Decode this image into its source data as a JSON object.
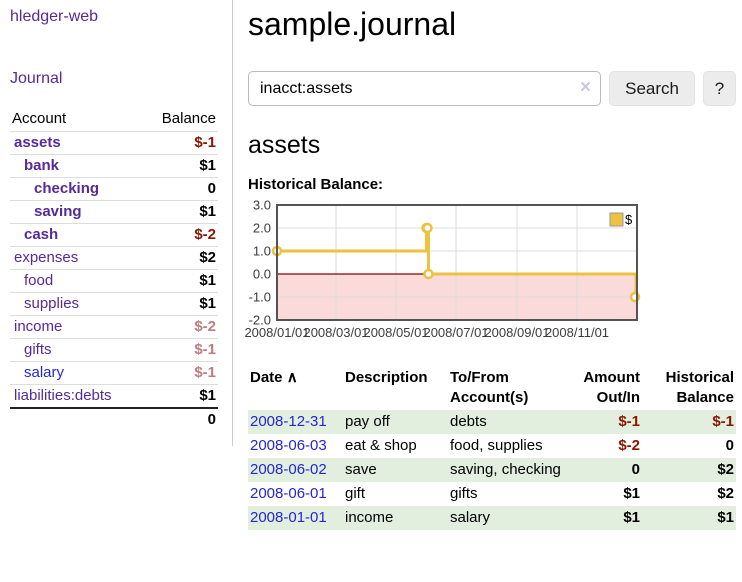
{
  "colors": {
    "purple": "#552a9b",
    "linkblue": "#2525d6",
    "negstrong": "#8b1500",
    "negsoft": "#c07c81",
    "rowgreen": "#e2efde",
    "gold": "#EDC240"
  },
  "app": {
    "brand": "hledger-web"
  },
  "sidebar": {
    "journal_link": "Journal",
    "accounts": {
      "header_account": "Account",
      "header_balance": "Balance",
      "rows": [
        {
          "name": "assets",
          "depth": 0,
          "bold": true,
          "blue": false,
          "balance": "$-1",
          "tone": "strong"
        },
        {
          "name": "bank",
          "depth": 1,
          "bold": true,
          "blue": false,
          "balance": "$1",
          "tone": ""
        },
        {
          "name": "checking",
          "depth": 2,
          "bold": true,
          "blue": false,
          "balance": "0",
          "tone": ""
        },
        {
          "name": "saving",
          "depth": 2,
          "bold": true,
          "blue": false,
          "balance": "$1",
          "tone": ""
        },
        {
          "name": "cash",
          "depth": 1,
          "bold": true,
          "blue": false,
          "balance": "$-2",
          "tone": "strong"
        },
        {
          "name": "expenses",
          "depth": 0,
          "bold": false,
          "blue": false,
          "balance": "$2",
          "tone": ""
        },
        {
          "name": "food",
          "depth": 1,
          "bold": false,
          "blue": false,
          "balance": "$1",
          "tone": ""
        },
        {
          "name": "supplies",
          "depth": 1,
          "bold": false,
          "blue": false,
          "balance": "$1",
          "tone": ""
        },
        {
          "name": "income",
          "depth": 0,
          "bold": false,
          "blue": false,
          "balance": "$-2",
          "tone": "soft"
        },
        {
          "name": "gifts",
          "depth": 1,
          "bold": false,
          "blue": false,
          "balance": "$-1",
          "tone": "soft"
        },
        {
          "name": "salary",
          "depth": 1,
          "bold": false,
          "blue": true,
          "balance": "$-1",
          "tone": "soft"
        },
        {
          "name": "liabilities:debts",
          "depth": 0,
          "bold": false,
          "blue": false,
          "balance": "$1",
          "tone": ""
        }
      ],
      "total": "0"
    }
  },
  "main": {
    "title": "sample.journal",
    "search": {
      "value": "inacct:assets",
      "clear_icon": "×",
      "button_label": "Search",
      "help_label": "?"
    },
    "section_title": "assets",
    "chart_heading": "Historical Balance:",
    "chart_data": {
      "type": "line",
      "title": "Historical Balance",
      "step": true,
      "series": [
        {
          "name": "$",
          "color": "#EDC240",
          "points": [
            [
              "2008-01-01",
              1
            ],
            [
              "2008-06-01",
              2
            ],
            [
              "2008-06-02",
              2
            ],
            [
              "2008-06-03",
              0
            ],
            [
              "2008-12-31",
              -1
            ]
          ]
        }
      ],
      "x_range": [
        "2008-01-01",
        "2009-01-01"
      ],
      "y_range": [
        -2,
        3
      ],
      "y_ticks": [
        3.0,
        2.0,
        1.0,
        0.0,
        -1.0,
        -2.0
      ],
      "x_ticks": [
        "2008/01/01",
        "2008/03/01",
        "2008/05/01",
        "2008/07/01",
        "2008/09/01",
        "2008/11/01"
      ],
      "legend": {
        "label": "$",
        "position": "top-right"
      },
      "grid": true,
      "negative_region_color": "#fbdada",
      "zero_line_color": "#8b0000",
      "grid_color": "#dcdcdc",
      "border_color": "#545454",
      "tick_label_color": "#3c3c3c"
    },
    "transactions": {
      "headers": [
        "Date",
        "Description",
        "To/From Account(s)",
        "Amount Out/In",
        "Historical Balance"
      ],
      "sort_icon": "∧",
      "rows": [
        {
          "date": "2008-12-31",
          "description": "pay off",
          "accounts": "debts",
          "amount": "$-1",
          "amount_neg": true,
          "balance": "$-1",
          "balance_neg": true,
          "shaded": true
        },
        {
          "date": "2008-06-03",
          "description": "eat & shop",
          "accounts": "food, supplies",
          "amount": "$-2",
          "amount_neg": true,
          "balance": "0",
          "balance_neg": false,
          "shaded": false
        },
        {
          "date": "2008-06-02",
          "description": "save",
          "accounts": "saving, checking",
          "amount": "0",
          "amount_neg": false,
          "balance": "$2",
          "balance_neg": false,
          "shaded": true
        },
        {
          "date": "2008-06-01",
          "description": "gift",
          "accounts": "gifts",
          "amount": "$1",
          "amount_neg": false,
          "balance": "$2",
          "balance_neg": false,
          "shaded": false
        },
        {
          "date": "2008-01-01",
          "description": "income",
          "accounts": "salary",
          "amount": "$1",
          "amount_neg": false,
          "balance": "$1",
          "balance_neg": false,
          "shaded": true
        }
      ]
    }
  }
}
